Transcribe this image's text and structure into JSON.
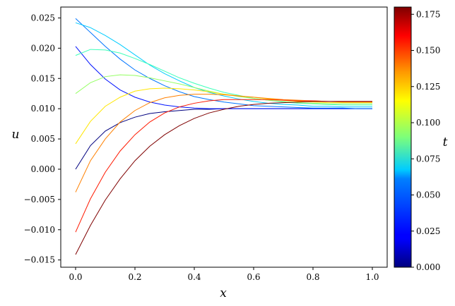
{
  "chart_data": {
    "type": "line",
    "title": "",
    "xlabel": "x",
    "ylabel": "u",
    "xlim": [
      -0.05,
      1.05
    ],
    "ylim": [
      -0.0162,
      0.0268
    ],
    "xticks": [
      "0.0",
      "0.2",
      "0.4",
      "0.6",
      "0.8",
      "1.0"
    ],
    "yticks": [
      "−0.015",
      "−0.010",
      "−0.005",
      "0.000",
      "0.005",
      "0.010",
      "0.015",
      "0.020",
      "0.025"
    ],
    "grid": false,
    "x": [
      0,
      0.05,
      0.1,
      0.15,
      0.2,
      0.25,
      0.3,
      0.35,
      0.4,
      0.45,
      0.5,
      0.55,
      0.6,
      0.65,
      0.7,
      0.75,
      0.8,
      0.85,
      0.9,
      0.95,
      1.0
    ],
    "series": [
      {
        "t": 0.0,
        "color": "#00007f",
        "values": [
          0.0,
          0.0039,
          0.0063,
          0.0077,
          0.0086,
          0.0092,
          0.0095,
          0.0097,
          0.0099,
          0.0099,
          0.01,
          0.01,
          0.01,
          0.01,
          0.01,
          0.01,
          0.01,
          0.01,
          0.01,
          0.01,
          0.01
        ]
      },
      {
        "t": 0.018,
        "color": "#0012ff",
        "values": [
          0.0203,
          0.0173,
          0.0149,
          0.0131,
          0.0119,
          0.0111,
          0.0106,
          0.0103,
          0.0101,
          0.01,
          0.01,
          0.01,
          0.01,
          0.01,
          0.01,
          0.01,
          0.01,
          0.01,
          0.01,
          0.01,
          0.01
        ]
      },
      {
        "t": 0.036,
        "color": "#0074ff",
        "values": [
          0.0249,
          0.0226,
          0.0203,
          0.0182,
          0.0164,
          0.015,
          0.0138,
          0.0128,
          0.012,
          0.0115,
          0.0111,
          0.0108,
          0.0105,
          0.0104,
          0.0103,
          0.0102,
          0.0101,
          0.0101,
          0.0101,
          0.01,
          0.01
        ]
      },
      {
        "t": 0.053,
        "color": "#00ccff",
        "values": [
          0.0242,
          0.0234,
          0.0221,
          0.0206,
          0.0189,
          0.0172,
          0.0158,
          0.0146,
          0.0135,
          0.0127,
          0.0121,
          0.0116,
          0.0112,
          0.0109,
          0.0107,
          0.0106,
          0.0104,
          0.0104,
          0.0103,
          0.0103,
          0.0103
        ]
      },
      {
        "t": 0.071,
        "color": "#3dffba",
        "values": [
          0.0188,
          0.0198,
          0.0197,
          0.0192,
          0.0183,
          0.0173,
          0.0162,
          0.0151,
          0.0142,
          0.0134,
          0.0127,
          0.0122,
          0.0117,
          0.0114,
          0.0111,
          0.0109,
          0.0108,
          0.0107,
          0.0106,
          0.0106,
          0.0106
        ]
      },
      {
        "t": 0.089,
        "color": "#94ff62",
        "values": [
          0.0125,
          0.0143,
          0.0153,
          0.0156,
          0.0155,
          0.0151,
          0.0146,
          0.0141,
          0.0135,
          0.0129,
          0.0124,
          0.012,
          0.0117,
          0.0114,
          0.0112,
          0.011,
          0.0109,
          0.0108,
          0.0108,
          0.0108,
          0.0108
        ]
      },
      {
        "t": 0.107,
        "color": "#ffe600",
        "values": [
          0.0042,
          0.0079,
          0.0104,
          0.0119,
          0.0129,
          0.0133,
          0.0134,
          0.0133,
          0.0131,
          0.0128,
          0.0124,
          0.0121,
          0.0119,
          0.0116,
          0.0114,
          0.0112,
          0.0111,
          0.011,
          0.011,
          0.011,
          0.011
        ]
      },
      {
        "t": 0.125,
        "color": "#ff8000",
        "values": [
          -0.0038,
          0.0014,
          0.005,
          0.0078,
          0.0097,
          0.011,
          0.0118,
          0.0122,
          0.0124,
          0.0124,
          0.0123,
          0.0121,
          0.0119,
          0.0117,
          0.0115,
          0.0114,
          0.0113,
          0.0112,
          0.0111,
          0.0111,
          0.0111
        ]
      },
      {
        "t": 0.142,
        "color": "#ff1900",
        "values": [
          -0.0104,
          -0.0049,
          -0.0005,
          0.003,
          0.0057,
          0.0078,
          0.0093,
          0.0103,
          0.0109,
          0.0113,
          0.0115,
          0.0115,
          0.0115,
          0.0115,
          0.0114,
          0.0113,
          0.0113,
          0.0112,
          0.0112,
          0.0112,
          0.0112
        ]
      },
      {
        "t": 0.16,
        "color": "#7f0000",
        "values": [
          -0.0141,
          -0.0093,
          -0.0051,
          -0.0016,
          0.0014,
          0.0038,
          0.0057,
          0.0072,
          0.0084,
          0.0093,
          0.0099,
          0.0104,
          0.0107,
          0.0109,
          0.011,
          0.0111,
          0.0112,
          0.0112,
          0.0112,
          0.0112,
          0.0112
        ]
      }
    ],
    "colorbar": {
      "label": "t",
      "range": [
        0,
        0.18
      ],
      "colormap": "jet",
      "ticks": [
        "0.000",
        "0.025",
        "0.050",
        "0.075",
        "0.100",
        "0.125",
        "0.150",
        "0.175"
      ]
    }
  }
}
